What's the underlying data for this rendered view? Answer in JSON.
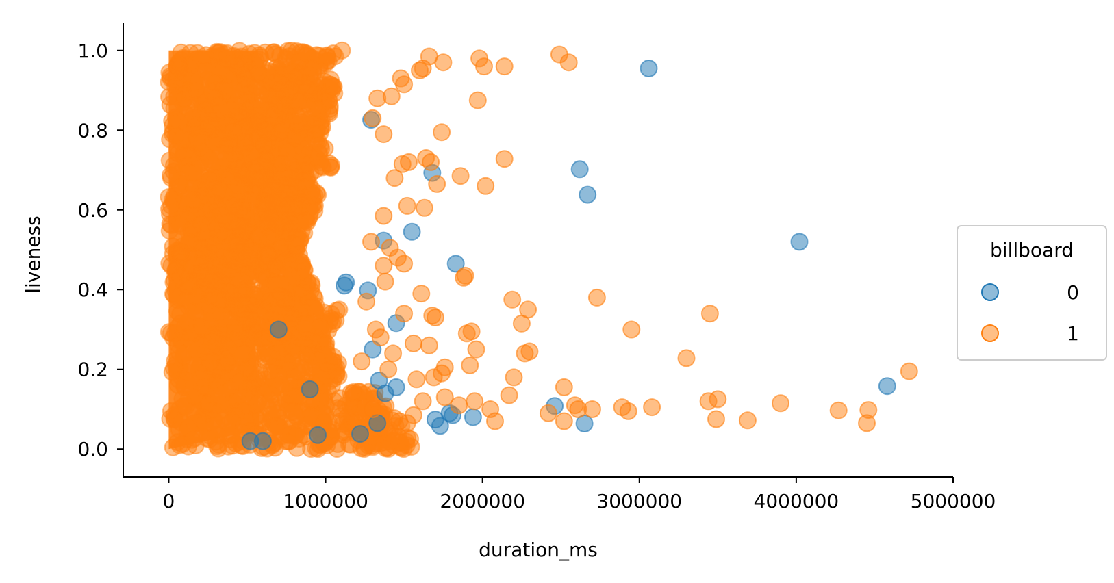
{
  "chart_data": {
    "type": "scatter",
    "title": "",
    "xlabel": "duration_ms",
    "ylabel": "liveness",
    "xlim": [
      -290000,
      5000000
    ],
    "ylim": [
      -0.07,
      1.07
    ],
    "x_ticks": [
      0,
      1000000,
      2000000,
      3000000,
      4000000,
      5000000
    ],
    "x_tick_labels": [
      "0",
      "1000000",
      "2000000",
      "3000000",
      "4000000",
      "5000000"
    ],
    "y_ticks": [
      0.0,
      0.2,
      0.4,
      0.6,
      0.8,
      1.0
    ],
    "y_tick_labels": [
      "0.0",
      "0.2",
      "0.4",
      "0.6",
      "0.8",
      "1.0"
    ],
    "grid": false,
    "legend": {
      "title": "billboard",
      "placement": "right"
    },
    "colors": {
      "0": "#1f77b4",
      "1": "#ff7f0e"
    },
    "marker_alpha": 0.5,
    "dense_region": {
      "x_range": [
        0,
        1000000
      ],
      "y_range": [
        0.0,
        1.0
      ],
      "series": "1",
      "note_visible": false
    },
    "series": [
      {
        "name": "0",
        "points": [
          [
            3060000,
            0.955
          ],
          [
            2620000,
            0.702
          ],
          [
            2670000,
            0.638
          ],
          [
            4020000,
            0.52
          ],
          [
            1680000,
            0.693
          ],
          [
            1370000,
            0.523
          ],
          [
            1550000,
            0.545
          ],
          [
            1830000,
            0.465
          ],
          [
            1130000,
            0.418
          ],
          [
            1270000,
            0.398
          ],
          [
            1450000,
            0.316
          ],
          [
            1290000,
            0.826
          ],
          [
            4580000,
            0.158
          ],
          [
            2460000,
            0.108
          ],
          [
            2650000,
            0.064
          ],
          [
            1730000,
            0.058
          ],
          [
            1810000,
            0.085
          ],
          [
            1940000,
            0.08
          ],
          [
            1790000,
            0.09
          ],
          [
            1220000,
            0.038
          ],
          [
            1340000,
            0.172
          ],
          [
            1450000,
            0.155
          ],
          [
            1330000,
            0.065
          ],
          [
            1120000,
            0.41
          ],
          [
            1300000,
            0.25
          ],
          [
            1380000,
            0.14
          ],
          [
            1700000,
            0.074
          ],
          [
            900000,
            0.15
          ],
          [
            700000,
            0.3
          ],
          [
            520000,
            0.02
          ],
          [
            600000,
            0.02
          ],
          [
            950000,
            0.035
          ]
        ]
      },
      {
        "name": "1",
        "points": [
          [
            2490000,
            0.99
          ],
          [
            2550000,
            0.97
          ],
          [
            1660000,
            0.985
          ],
          [
            1750000,
            0.97
          ],
          [
            1980000,
            0.98
          ],
          [
            2010000,
            0.96
          ],
          [
            2140000,
            0.96
          ],
          [
            1970000,
            0.875
          ],
          [
            1620000,
            0.955
          ],
          [
            1600000,
            0.95
          ],
          [
            1740000,
            0.795
          ],
          [
            2140000,
            0.728
          ],
          [
            1490000,
            0.715
          ],
          [
            1530000,
            0.72
          ],
          [
            1640000,
            0.73
          ],
          [
            1670000,
            0.72
          ],
          [
            1710000,
            0.665
          ],
          [
            1860000,
            0.685
          ],
          [
            2020000,
            0.66
          ],
          [
            1630000,
            0.605
          ],
          [
            1520000,
            0.61
          ],
          [
            1370000,
            0.585
          ],
          [
            1410000,
            0.505
          ],
          [
            1460000,
            0.48
          ],
          [
            1500000,
            0.465
          ],
          [
            1890000,
            0.435
          ],
          [
            1880000,
            0.43
          ],
          [
            1370000,
            0.46
          ],
          [
            1380000,
            0.42
          ],
          [
            2730000,
            0.38
          ],
          [
            2190000,
            0.375
          ],
          [
            2290000,
            0.35
          ],
          [
            1610000,
            0.39
          ],
          [
            1680000,
            0.335
          ],
          [
            1700000,
            0.33
          ],
          [
            2250000,
            0.315
          ],
          [
            1500000,
            0.34
          ],
          [
            1560000,
            0.265
          ],
          [
            1660000,
            0.26
          ],
          [
            1900000,
            0.29
          ],
          [
            1930000,
            0.295
          ],
          [
            1960000,
            0.25
          ],
          [
            1920000,
            0.21
          ],
          [
            1760000,
            0.205
          ],
          [
            1740000,
            0.19
          ],
          [
            1690000,
            0.18
          ],
          [
            1580000,
            0.175
          ],
          [
            2200000,
            0.18
          ],
          [
            2170000,
            0.135
          ],
          [
            2270000,
            0.24
          ],
          [
            2300000,
            0.245
          ],
          [
            2950000,
            0.3
          ],
          [
            3450000,
            0.34
          ],
          [
            3300000,
            0.228
          ],
          [
            4720000,
            0.195
          ],
          [
            2520000,
            0.155
          ],
          [
            2590000,
            0.11
          ],
          [
            2610000,
            0.1
          ],
          [
            2700000,
            0.1
          ],
          [
            2890000,
            0.105
          ],
          [
            2930000,
            0.095
          ],
          [
            3080000,
            0.105
          ],
          [
            3440000,
            0.12
          ],
          [
            3500000,
            0.125
          ],
          [
            3490000,
            0.075
          ],
          [
            3690000,
            0.072
          ],
          [
            3900000,
            0.115
          ],
          [
            4270000,
            0.097
          ],
          [
            4460000,
            0.098
          ],
          [
            4450000,
            0.065
          ],
          [
            2420000,
            0.09
          ],
          [
            2520000,
            0.07
          ],
          [
            2050000,
            0.1
          ],
          [
            2080000,
            0.07
          ],
          [
            1950000,
            0.12
          ],
          [
            1850000,
            0.11
          ],
          [
            1760000,
            0.13
          ],
          [
            1620000,
            0.12
          ],
          [
            1560000,
            0.085
          ],
          [
            1520000,
            0.065
          ],
          [
            1470000,
            0.07
          ],
          [
            1330000,
            0.88
          ],
          [
            1420000,
            0.885
          ],
          [
            1480000,
            0.93
          ],
          [
            1500000,
            0.915
          ],
          [
            1370000,
            0.79
          ],
          [
            1300000,
            0.83
          ],
          [
            1440000,
            0.68
          ],
          [
            1290000,
            0.52
          ],
          [
            1260000,
            0.37
          ],
          [
            1320000,
            0.3
          ],
          [
            1430000,
            0.24
          ],
          [
            1400000,
            0.2
          ],
          [
            1350000,
            0.28
          ],
          [
            1230000,
            0.22
          ],
          [
            1300000,
            0.1
          ]
        ]
      }
    ]
  }
}
